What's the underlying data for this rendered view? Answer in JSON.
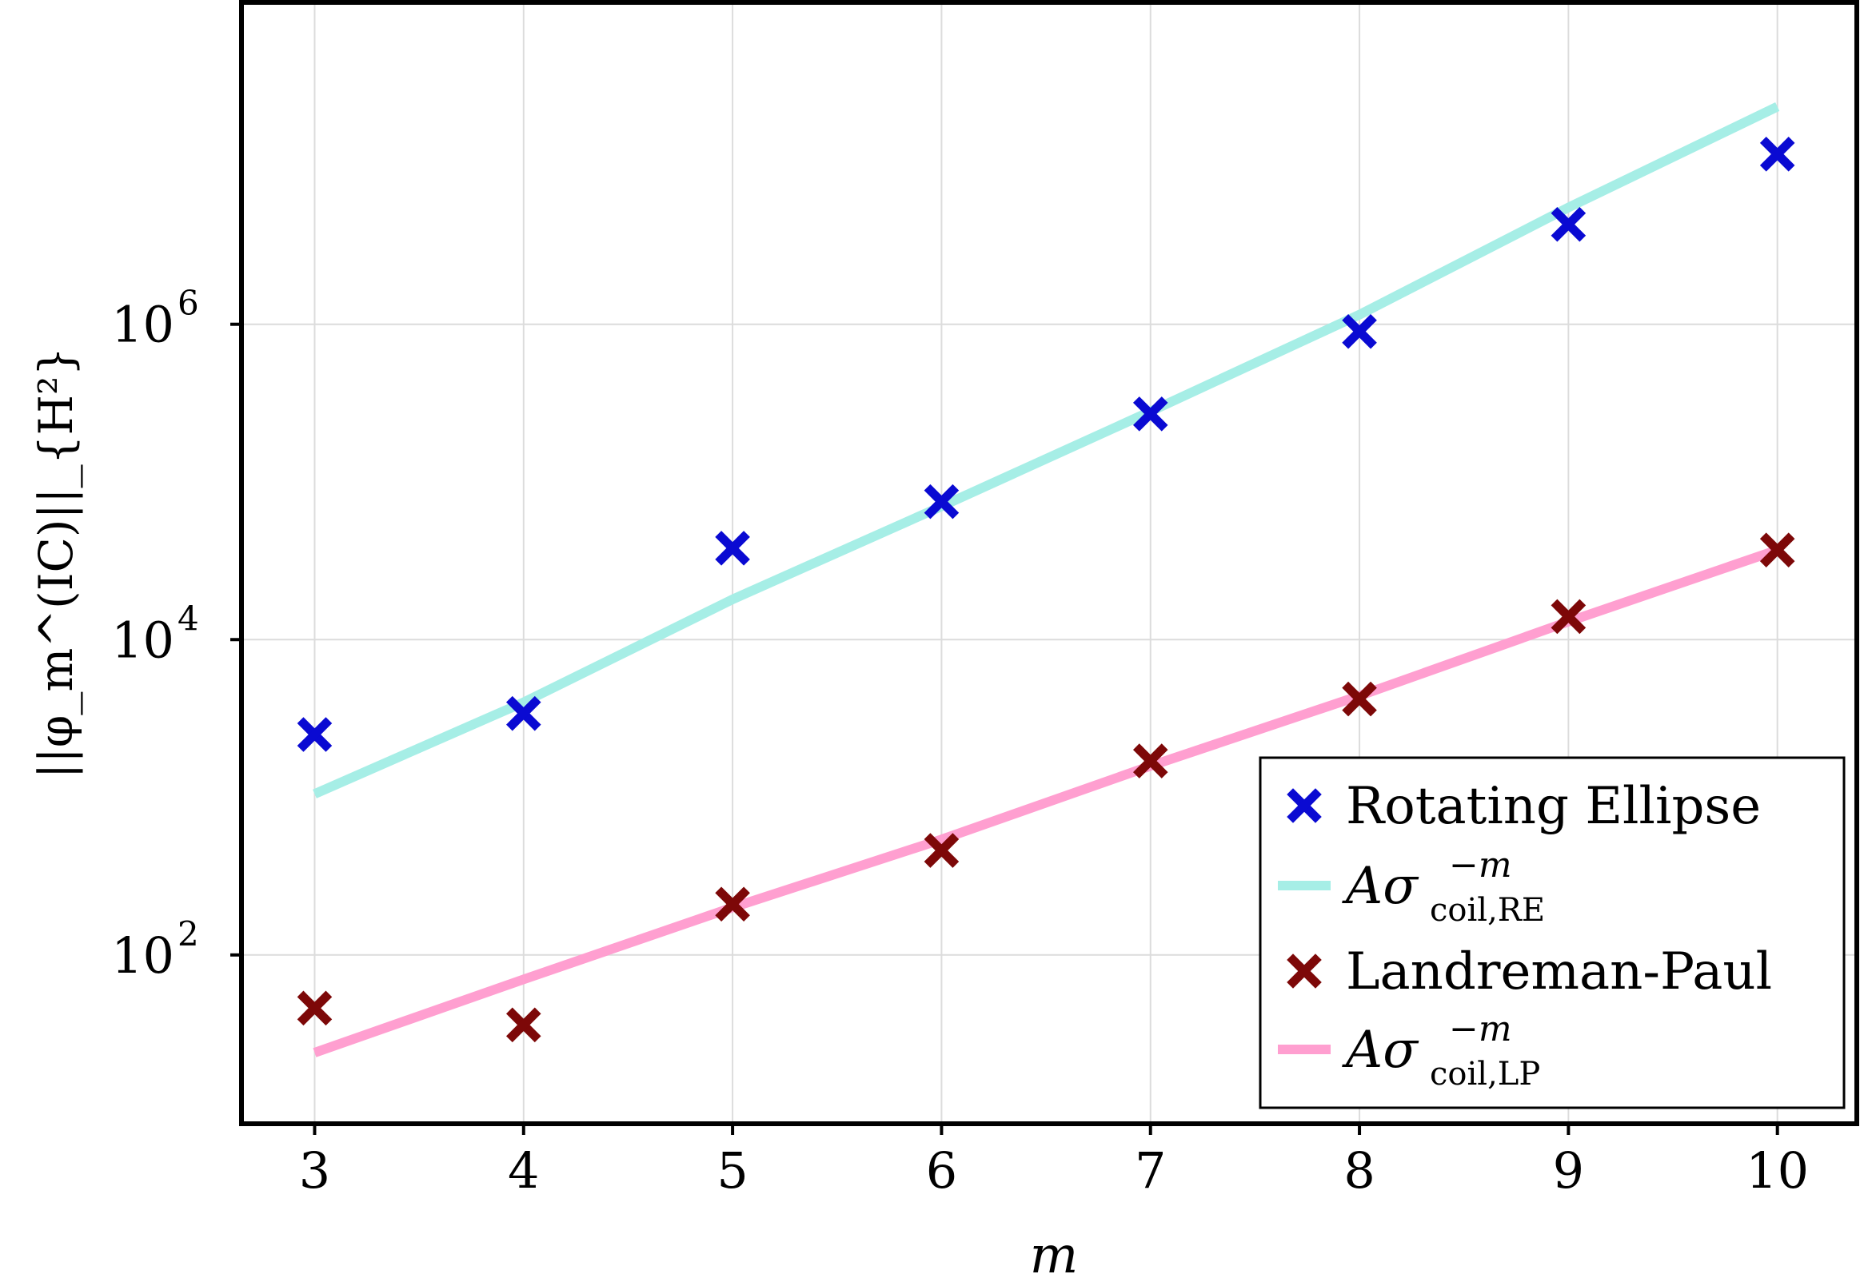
{
  "chart_data": {
    "type": "scatter",
    "title": "",
    "xlabel": "m",
    "ylabel": "||φ_m^(IC)||_{H²}",
    "x": [
      3,
      4,
      5,
      6,
      7,
      8,
      9,
      10
    ],
    "xticks": [
      "3",
      "4",
      "5",
      "6",
      "7",
      "8",
      "9",
      "10"
    ],
    "xlim": [
      2.65,
      10.38
    ],
    "ylog": true,
    "ylim": [
      8.5,
      110000000.0
    ],
    "yticks": [
      {
        "value": 100,
        "base": "10",
        "exp": "2"
      },
      {
        "value": 10000,
        "base": "10",
        "exp": "4"
      },
      {
        "value": 1000000,
        "base": "10",
        "exp": "6"
      }
    ],
    "grid": true,
    "legend_position": "bottom-right",
    "series": [
      {
        "name": "Rotating Ellipse",
        "kind": "marker",
        "marker": "x",
        "color": "#0a0ad2",
        "values": [
          2500,
          3400,
          38000,
          75000,
          270000,
          900000,
          4300000,
          12000000
        ]
      },
      {
        "name": "Aσ_coil,RE^−m",
        "kind": "line",
        "color": "#a6eee6",
        "values": [
          1050,
          4000,
          18000,
          70000,
          280000,
          1150000,
          5500000,
          24000000
        ]
      },
      {
        "name": "Landreman-Paul",
        "kind": "marker",
        "marker": "x",
        "color": "#7d0808",
        "values": [
          46,
          36,
          210,
          460,
          1700,
          4200,
          14000,
          37000
        ]
      },
      {
        "name": "Aσ_coil,LP^−m",
        "kind": "line",
        "color": "#ff9fd0",
        "values": [
          24,
          70,
          200,
          540,
          1580,
          4400,
          13000,
          37000
        ]
      }
    ],
    "legend": {
      "re_label": "Rotating Ellipse",
      "re_fit_base": "Aσ",
      "re_fit_sup": "−m",
      "re_fit_sub": "coil,RE",
      "lp_label": "Landreman-Paul",
      "lp_fit_base": "Aσ",
      "lp_fit_sup": "−m",
      "lp_fit_sub": "coil,LP"
    }
  }
}
